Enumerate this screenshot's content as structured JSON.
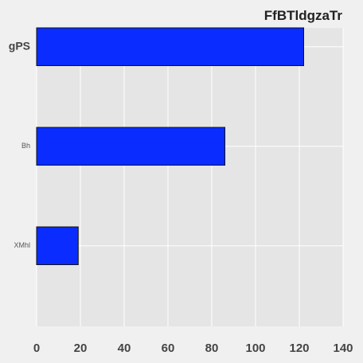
{
  "chart_data": {
    "type": "bar",
    "orientation": "horizontal",
    "title": "FfBTldgzaTr",
    "xlabel": "",
    "ylabel": "",
    "categories": [
      "gPS",
      "Bh",
      "XMhl"
    ],
    "values": [
      122,
      86,
      19
    ],
    "xlim": [
      0,
      140
    ],
    "xticks": [
      0,
      20,
      40,
      60,
      80,
      100,
      120,
      140
    ],
    "grid": true,
    "legend": "none",
    "colors": {
      "bar": "#0a2cff",
      "plot_background": "#e5e5e5",
      "figure_background": "#f0f0f0",
      "grid": "#ffffff"
    }
  }
}
